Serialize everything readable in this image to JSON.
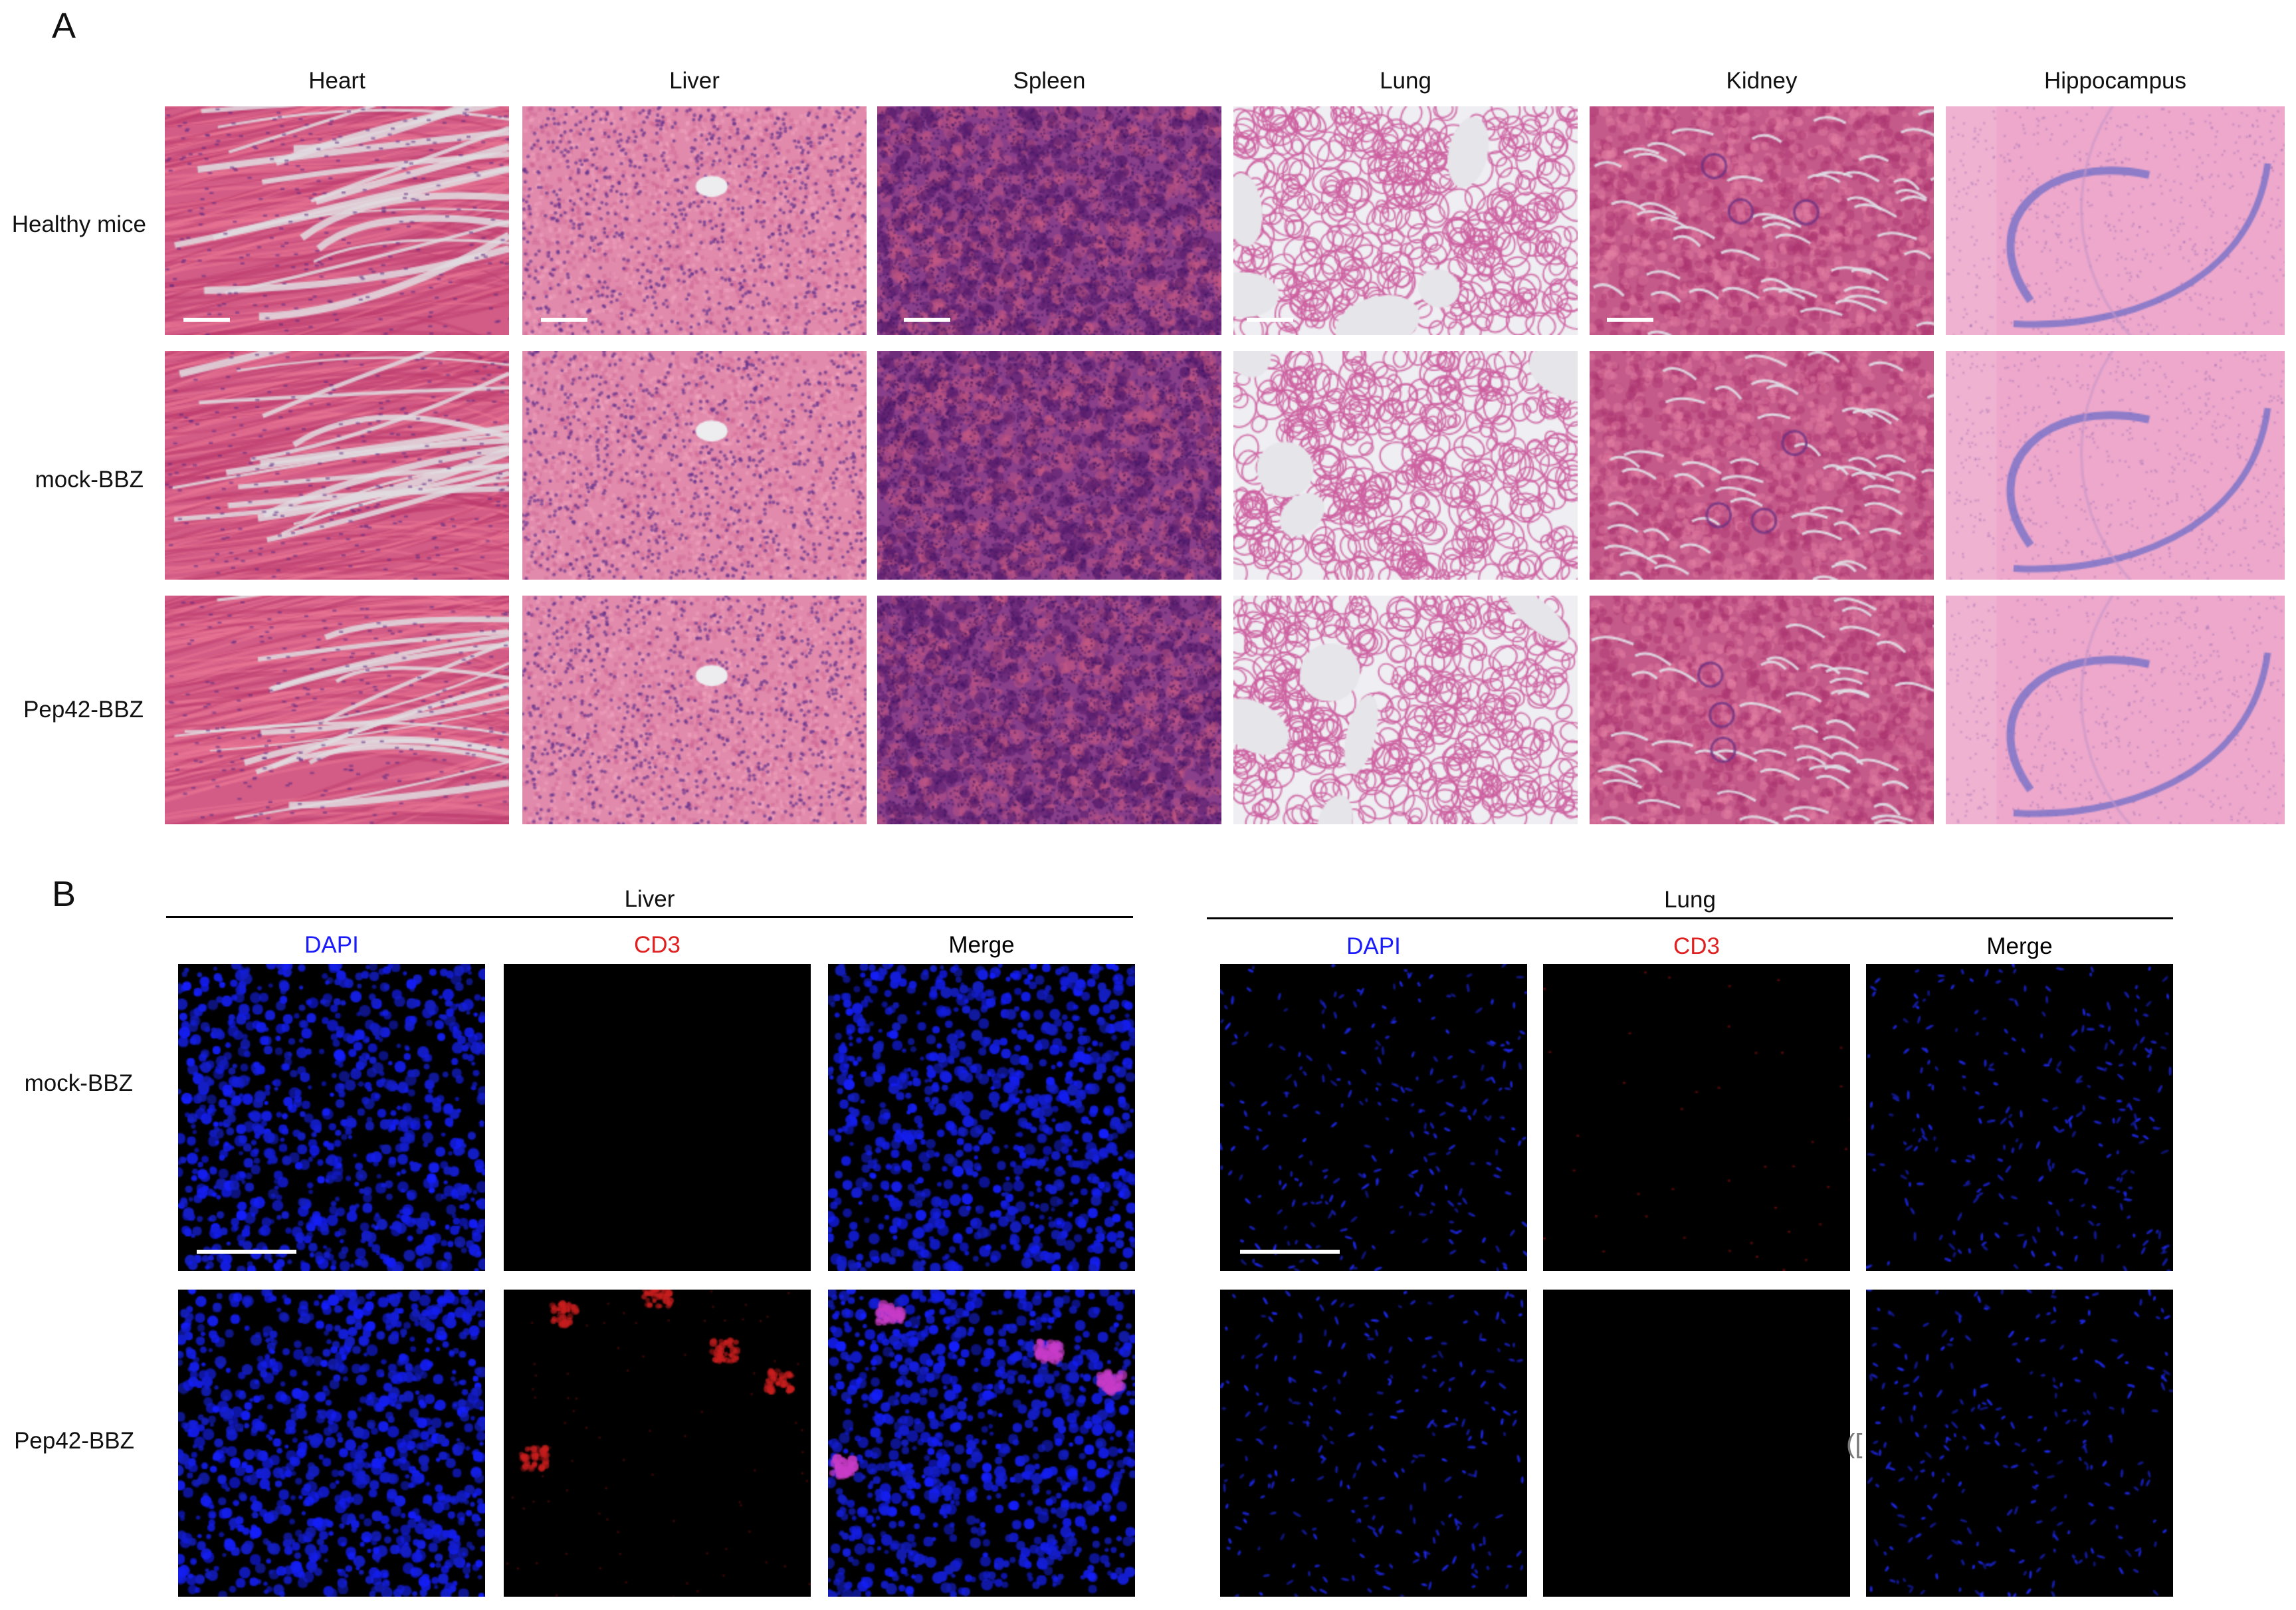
{
  "panel_a": {
    "label": "A",
    "columns": [
      "Heart",
      "Liver",
      "Spleen",
      "Lung",
      "Kidney",
      "Hippocampus"
    ],
    "rows": [
      "Healthy mice",
      "mock-BBZ",
      "Pep42-BBZ"
    ]
  },
  "panel_b": {
    "label": "B",
    "groups": [
      {
        "title": "Liver",
        "channels": [
          "DAPI",
          "CD3",
          "Merge"
        ]
      },
      {
        "title": "Lung",
        "channels": [
          "DAPI",
          "CD3",
          "Merge"
        ]
      }
    ],
    "rows": [
      "mock-BBZ",
      "Pep42-BBZ"
    ],
    "channel_colors": {
      "DAPI": "#1a1aff",
      "CD3": "#e02020",
      "Merge": "#000000"
    }
  },
  "stray_mark": "(["
}
